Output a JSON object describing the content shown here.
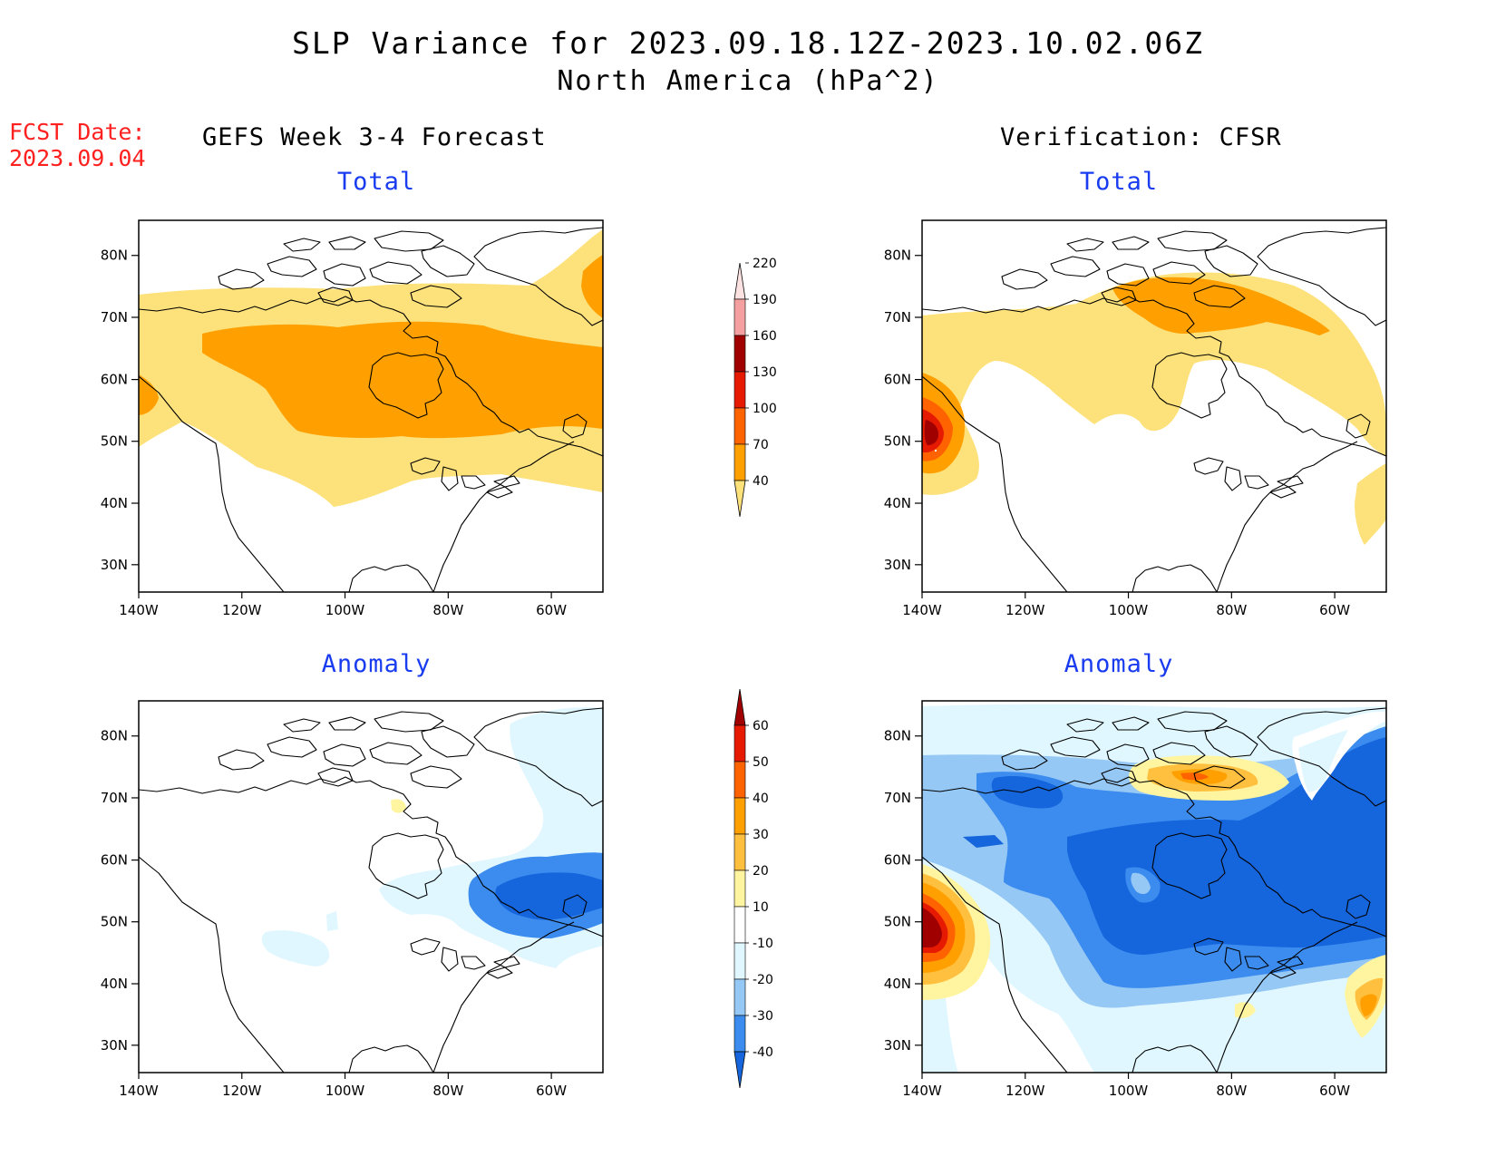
{
  "title": {
    "line1": "SLP Variance for 2023.09.18.12Z-2023.10.02.06Z",
    "line2": "North America (hPa^2)"
  },
  "forecast_date": {
    "label": "FCST Date:",
    "value": "2023.09.04"
  },
  "columns": {
    "left": "GEFS Week 3-4 Forecast",
    "right": "Verification: CFSR"
  },
  "panels": {
    "total_label": "Total",
    "anomaly_label": "Anomaly"
  },
  "axes": {
    "lat_ticks": [
      "80N",
      "70N",
      "60N",
      "50N",
      "40N",
      "30N"
    ],
    "lon_ticks": [
      "140W",
      "120W",
      "100W",
      "80W",
      "60W"
    ]
  },
  "colorbars": {
    "total": {
      "levels": [
        "40",
        "70",
        "100",
        "130",
        "160",
        "190",
        "220"
      ],
      "colors": [
        "#fde17a",
        "#ffa000",
        "#ff6300",
        "#e61a00",
        "#a00000",
        "#f4a0a0",
        "#fde2e2"
      ]
    },
    "anomaly": {
      "levels": [
        "-40",
        "-30",
        "-20",
        "-10",
        "10",
        "20",
        "30",
        "40",
        "50",
        "60"
      ],
      "colors": [
        "#1565dc",
        "#3c8cf0",
        "#96c8f5",
        "#e0f7ff",
        "#ffffff",
        "#fff5a0",
        "#ffc040",
        "#ffa000",
        "#ff6300",
        "#e61a00",
        "#a00000"
      ]
    }
  }
}
